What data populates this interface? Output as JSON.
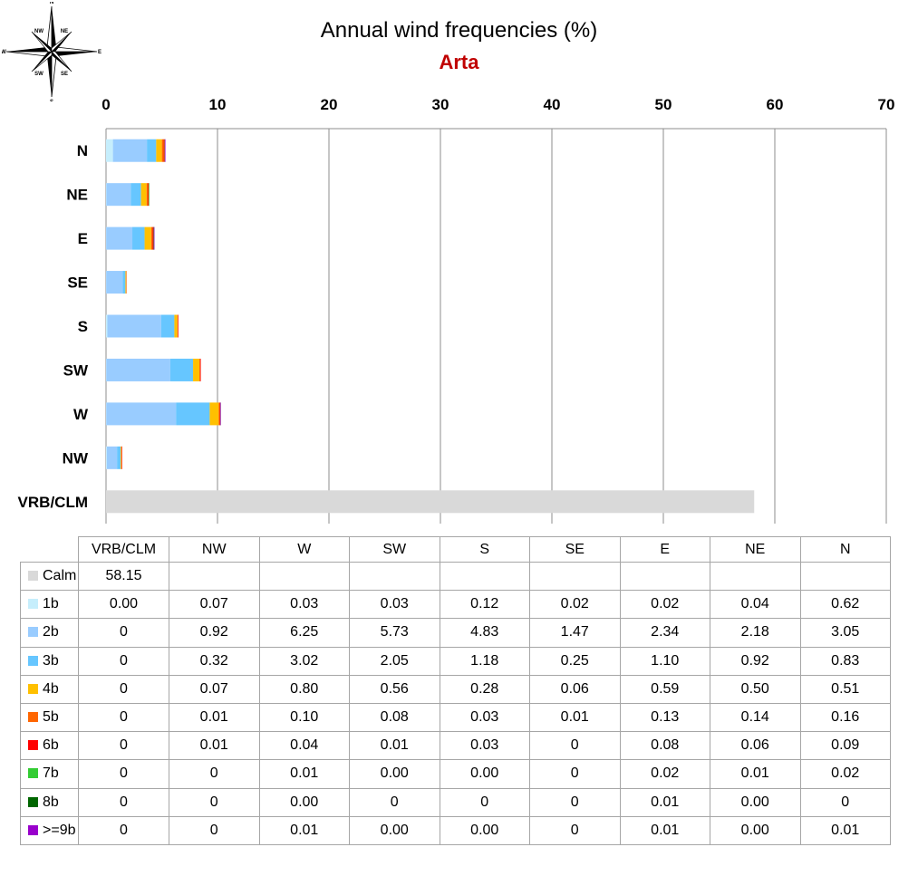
{
  "compass": {
    "labels": [
      "N",
      "NE",
      "E",
      "SE",
      "S",
      "SW",
      "W",
      "NW"
    ]
  },
  "chart_data": {
    "type": "bar",
    "orientation": "horizontal",
    "stacked": true,
    "title": "Annual wind frequencies (%)",
    "subtitle": "Arta",
    "categories": [
      "VRB/CLM",
      "NW",
      "W",
      "SW",
      "S",
      "SE",
      "E",
      "NE",
      "N"
    ],
    "xlim": [
      0,
      70
    ],
    "xticks": [
      0,
      10,
      20,
      30,
      40,
      50,
      60,
      70
    ],
    "grid": true,
    "series": [
      {
        "name": "Calm",
        "color": "#d9d9d9",
        "values": [
          58.15,
          null,
          null,
          null,
          null,
          null,
          null,
          null,
          null
        ],
        "labels": [
          "58.15",
          "",
          "",
          "",
          "",
          "",
          "",
          "",
          ""
        ]
      },
      {
        "name": "1b",
        "color": "#c6eefc",
        "values": [
          0.0,
          0.07,
          0.03,
          0.03,
          0.12,
          0.02,
          0.02,
          0.04,
          0.62
        ],
        "labels": [
          "0.00",
          "0.07",
          "0.03",
          "0.03",
          "0.12",
          "0.02",
          "0.02",
          "0.04",
          "0.62"
        ]
      },
      {
        "name": "2b",
        "color": "#99ccff",
        "values": [
          0,
          0.92,
          6.25,
          5.73,
          4.83,
          1.47,
          2.34,
          2.18,
          3.05
        ],
        "labels": [
          "0",
          "0.92",
          "6.25",
          "5.73",
          "4.83",
          "1.47",
          "2.34",
          "2.18",
          "3.05"
        ]
      },
      {
        "name": "3b",
        "color": "#66c6ff",
        "values": [
          0,
          0.32,
          3.02,
          2.05,
          1.18,
          0.25,
          1.1,
          0.92,
          0.83
        ],
        "labels": [
          "0",
          "0.32",
          "3.02",
          "2.05",
          "1.18",
          "0.25",
          "1.10",
          "0.92",
          "0.83"
        ]
      },
      {
        "name": "4b",
        "color": "#ffc000",
        "values": [
          0,
          0.07,
          0.8,
          0.56,
          0.28,
          0.06,
          0.59,
          0.5,
          0.51
        ],
        "labels": [
          "0",
          "0.07",
          "0.80",
          "0.56",
          "0.28",
          "0.06",
          "0.59",
          "0.50",
          "0.51"
        ]
      },
      {
        "name": "5b",
        "color": "#ff6600",
        "values": [
          0,
          0.01,
          0.1,
          0.08,
          0.03,
          0.01,
          0.13,
          0.14,
          0.16
        ],
        "labels": [
          "0",
          "0.01",
          "0.10",
          "0.08",
          "0.03",
          "0.01",
          "0.13",
          "0.14",
          "0.16"
        ]
      },
      {
        "name": "6b",
        "color": "#ff0000",
        "values": [
          0,
          0.01,
          0.04,
          0.01,
          0.03,
          0,
          0.08,
          0.06,
          0.09
        ],
        "labels": [
          "0",
          "0.01",
          "0.04",
          "0.01",
          "0.03",
          "0",
          "0.08",
          "0.06",
          "0.09"
        ]
      },
      {
        "name": "7b",
        "color": "#33cc33",
        "values": [
          0,
          0,
          0.01,
          0.0,
          0.0,
          0,
          0.02,
          0.01,
          0.02
        ],
        "labels": [
          "0",
          "0",
          "0.01",
          "0.00",
          "0.00",
          "0",
          "0.02",
          "0.01",
          "0.02"
        ]
      },
      {
        "name": "8b",
        "color": "#006600",
        "values": [
          0,
          0,
          0.0,
          0,
          0,
          0,
          0.01,
          0.0,
          0
        ],
        "labels": [
          "0",
          "0",
          "0.00",
          "0",
          "0",
          "0",
          "0.01",
          "0.00",
          "0"
        ]
      },
      {
        "name": ">=9b",
        "color": "#9900cc",
        "values": [
          0,
          0,
          0.01,
          0.0,
          0.0,
          0,
          0.01,
          0.0,
          0.01
        ],
        "labels": [
          "0",
          "0",
          "0.01",
          "0.00",
          "0.00",
          "0",
          "0.01",
          "0.00",
          "0.01"
        ]
      }
    ]
  }
}
